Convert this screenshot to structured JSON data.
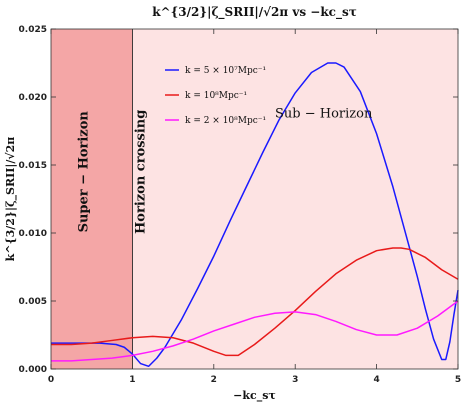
{
  "chart_data": {
    "type": "line",
    "title": "k^{3/2}|ζ_SRII|/√2π vs −kc_sτ",
    "xlabel": "−kc_sτ",
    "ylabel": "k^{3/2}|ζ_SRII|/√2π",
    "xlim": [
      0,
      5
    ],
    "ylim": [
      0,
      0.025
    ],
    "xticks": [
      "0",
      "1",
      "2",
      "3",
      "4",
      "5"
    ],
    "yticks": [
      "0.000",
      "0.005",
      "0.010",
      "0.015",
      "0.020",
      "0.025"
    ],
    "grid": false,
    "legend_position": "top-left",
    "regions": [
      {
        "name": "Super − Horizon",
        "x_range": [
          0,
          1
        ],
        "color": "#f4a6a6"
      },
      {
        "name": "Sub − Horizon",
        "x_range": [
          1,
          5
        ],
        "color": "#fde3e3"
      }
    ],
    "annotations": [
      {
        "text": "Super − Horizon",
        "x": 0.45,
        "y": 0.0145,
        "rotation": -90
      },
      {
        "text": "Horizon crossing",
        "x": 1.15,
        "y": 0.0145,
        "rotation": -90
      },
      {
        "text": "Sub − Horizon",
        "x": 3.35,
        "y": 0.0185,
        "rotation": 0
      }
    ],
    "vlines": [
      1
    ],
    "series": [
      {
        "name": "k = 5 × 10⁷Mpc⁻¹",
        "color": "#1a1aff",
        "x": [
          0,
          0.2,
          0.4,
          0.6,
          0.8,
          0.9,
          1.0,
          1.1,
          1.2,
          1.3,
          1.4,
          1.6,
          1.8,
          2.0,
          2.2,
          2.4,
          2.6,
          2.8,
          3.0,
          3.2,
          3.4,
          3.5,
          3.6,
          3.8,
          4.0,
          4.2,
          4.4,
          4.5,
          4.6,
          4.7,
          4.8,
          4.85,
          4.9,
          4.95,
          5.0
        ],
        "y": [
          0.0019,
          0.0019,
          0.0019,
          0.0019,
          0.0018,
          0.0016,
          0.0011,
          0.0004,
          0.0002,
          0.0008,
          0.0016,
          0.0036,
          0.0059,
          0.0083,
          0.0109,
          0.0134,
          0.0159,
          0.0183,
          0.0203,
          0.0218,
          0.0225,
          0.0225,
          0.0222,
          0.0204,
          0.0173,
          0.0134,
          0.009,
          0.0068,
          0.0044,
          0.0022,
          0.0007,
          0.0007,
          0.002,
          0.004,
          0.0058
        ]
      },
      {
        "name": "k = 10⁸Mpc⁻¹",
        "color": "#e81a1a",
        "x": [
          0,
          0.25,
          0.5,
          0.75,
          1.0,
          1.25,
          1.5,
          1.75,
          2.0,
          2.15,
          2.3,
          2.5,
          2.75,
          3.0,
          3.25,
          3.5,
          3.75,
          4.0,
          4.2,
          4.3,
          4.4,
          4.6,
          4.8,
          5.0
        ],
        "y": [
          0.0018,
          0.0018,
          0.0019,
          0.0021,
          0.0023,
          0.0024,
          0.0023,
          0.0019,
          0.0013,
          0.001,
          0.001,
          0.0018,
          0.003,
          0.0043,
          0.0057,
          0.007,
          0.008,
          0.0087,
          0.0089,
          0.0089,
          0.0088,
          0.0082,
          0.0073,
          0.0066
        ]
      },
      {
        "name": "k = 2 × 10⁸Mpc⁻¹",
        "color": "#ff1aff",
        "x": [
          0,
          0.25,
          0.5,
          0.75,
          1.0,
          1.25,
          1.5,
          1.75,
          2.0,
          2.25,
          2.5,
          2.75,
          3.0,
          3.25,
          3.5,
          3.75,
          4.0,
          4.25,
          4.5,
          4.75,
          5.0
        ],
        "y": [
          0.0006,
          0.0006,
          0.0007,
          0.0008,
          0.001,
          0.0013,
          0.0017,
          0.0022,
          0.0028,
          0.0033,
          0.0038,
          0.0041,
          0.0042,
          0.004,
          0.0035,
          0.0029,
          0.0025,
          0.0025,
          0.003,
          0.0039,
          0.005
        ]
      }
    ]
  }
}
